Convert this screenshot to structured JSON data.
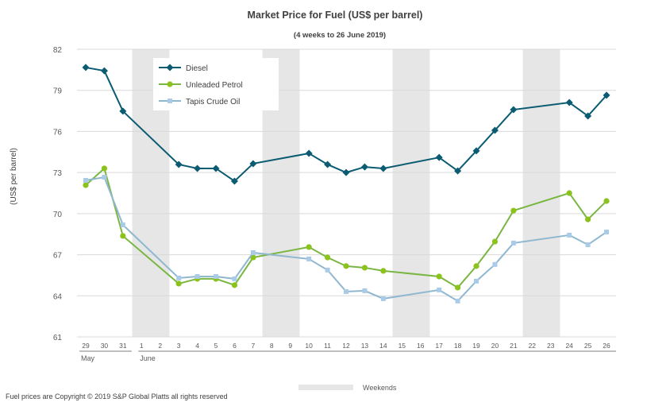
{
  "chart_data": {
    "type": "line",
    "title": "Market Price for Fuel (US$ per barrel)",
    "subtitle": "(4 weeks to 26 June 2019)",
    "ylabel": "(US$ per barrel)",
    "xlabel": "",
    "ylim": [
      61,
      82
    ],
    "yticks": [
      61,
      64,
      67,
      70,
      73,
      76,
      79,
      82
    ],
    "grid": true,
    "legend_placement": "top-left",
    "categories": [
      "29",
      "30",
      "31",
      "1",
      "2",
      "3",
      "4",
      "5",
      "6",
      "7",
      "8",
      "9",
      "10",
      "11",
      "12",
      "13",
      "14",
      "15",
      "16",
      "17",
      "18",
      "19",
      "20",
      "21",
      "22",
      "23",
      "24",
      "25",
      "26"
    ],
    "month_labels": [
      {
        "label": "May",
        "from": "29",
        "to": "31"
      },
      {
        "label": "June",
        "from": "1",
        "to": "26"
      }
    ],
    "weekends": [
      [
        "1",
        "2"
      ],
      [
        "8",
        "9"
      ],
      [
        "15",
        "16"
      ],
      [
        "22",
        "23"
      ]
    ],
    "weekend_legend": "Weekends",
    "series": [
      {
        "name": "Diesel",
        "color": "#0b5b72",
        "marker": "diamond",
        "values": [
          80.67,
          80.43,
          77.48,
          null,
          null,
          73.59,
          73.3,
          73.3,
          72.37,
          73.65,
          null,
          null,
          74.4,
          73.59,
          73.0,
          73.41,
          73.3,
          null,
          null,
          74.1,
          73.12,
          74.58,
          76.08,
          77.59,
          null,
          null,
          78.11,
          77.13,
          78.64
        ]
      },
      {
        "name": "Unleaded Petrol",
        "color": "#7ab642",
        "marker_color": "#8cc21c",
        "marker": "circle",
        "values": [
          72.08,
          73.3,
          68.37,
          null,
          null,
          64.89,
          65.24,
          65.24,
          64.78,
          66.8,
          null,
          null,
          67.56,
          66.8,
          66.17,
          66.05,
          65.82,
          null,
          null,
          65.41,
          64.6,
          66.17,
          67.96,
          70.22,
          null,
          null,
          71.5,
          69.58,
          70.92
        ]
      },
      {
        "name": "Tapis Crude Oil",
        "color": "#8fb8d0",
        "marker_color": "#a9cbe8",
        "marker": "square",
        "values": [
          72.43,
          72.66,
          69.18,
          null,
          null,
          65.3,
          65.41,
          65.41,
          65.24,
          67.15,
          null,
          null,
          66.69,
          65.88,
          64.31,
          64.37,
          63.79,
          null,
          null,
          64.43,
          63.62,
          65.07,
          66.29,
          67.85,
          null,
          null,
          68.43,
          67.73,
          68.66
        ]
      }
    ]
  },
  "footer": {
    "copyright": "Fuel prices are Copyright © 2019 S&P Global Platts all rights reserved"
  }
}
